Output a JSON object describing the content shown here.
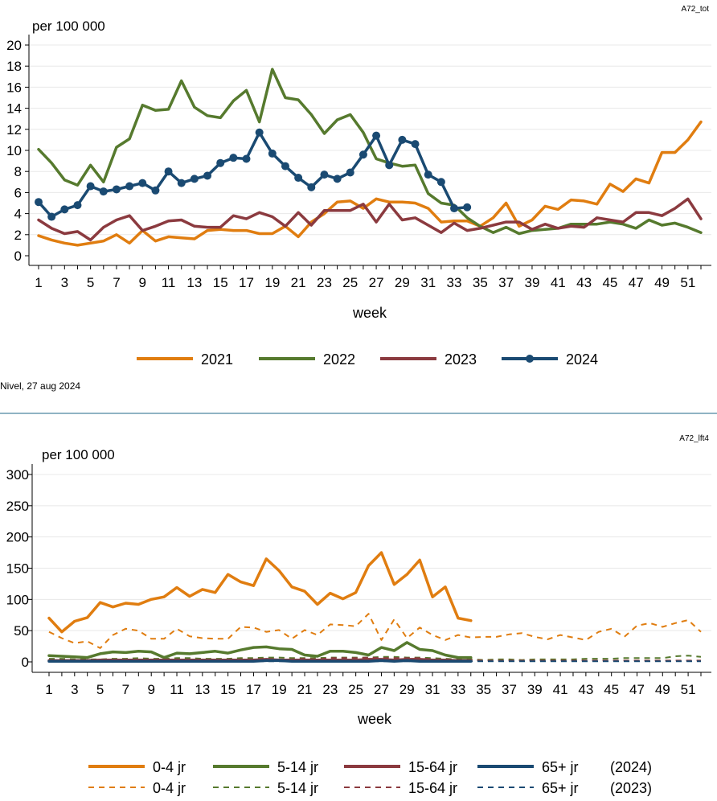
{
  "colors": {
    "orange": "#e07d10",
    "green": "#567a2e",
    "red": "#8b3a3f",
    "blue": "#1a4a72",
    "divider": "#6a9ab0",
    "grid": "#e8e8e8"
  },
  "chart_data": [
    {
      "type": "line",
      "code": "A72_tot",
      "ylabel": "per 100 000",
      "xlabel": "week",
      "ylim": [
        0,
        20
      ],
      "yticks": [
        0,
        2,
        4,
        6,
        8,
        10,
        12,
        14,
        16,
        18,
        20
      ],
      "xticks": [
        1,
        3,
        5,
        7,
        9,
        11,
        13,
        15,
        17,
        19,
        21,
        23,
        25,
        27,
        29,
        31,
        33,
        35,
        37,
        39,
        41,
        43,
        45,
        47,
        49,
        51
      ],
      "grid": true,
      "legend_position": "bottom",
      "series": [
        {
          "name": "2021",
          "color": "orange",
          "markers": false,
          "values": [
            1.9,
            1.5,
            1.2,
            1.0,
            1.2,
            1.4,
            2.0,
            1.2,
            2.4,
            1.4,
            1.8,
            1.7,
            1.6,
            2.4,
            2.5,
            2.4,
            2.4,
            2.1,
            2.1,
            2.8,
            1.8,
            3.2,
            4.0,
            5.1,
            5.2,
            4.5,
            5.4,
            5.1,
            5.1,
            5.0,
            4.5,
            3.2,
            3.3,
            3.3,
            2.8,
            3.6,
            5.0,
            2.8,
            3.4,
            4.7,
            4.4,
            5.3,
            5.2,
            4.9,
            6.8,
            6.1,
            7.3,
            6.9,
            9.8,
            9.8,
            11.0,
            12.7
          ]
        },
        {
          "name": "2022",
          "color": "green",
          "markers": false,
          "values": [
            10.1,
            8.8,
            7.2,
            6.7,
            8.6,
            7.0,
            10.3,
            11.1,
            14.3,
            13.8,
            13.9,
            16.6,
            14.1,
            13.3,
            13.1,
            14.7,
            15.7,
            12.7,
            17.7,
            15.0,
            14.8,
            13.4,
            11.6,
            12.9,
            13.4,
            11.7,
            9.2,
            8.8,
            8.5,
            8.6,
            5.9,
            5.0,
            4.8,
            3.6,
            2.8,
            2.2,
            2.7,
            2.1,
            2.4,
            2.5,
            2.6,
            3.0,
            3.0,
            3.0,
            3.2,
            3.0,
            2.6,
            3.4,
            2.9,
            3.1,
            2.7,
            2.2
          ]
        },
        {
          "name": "2023",
          "color": "red",
          "markers": false,
          "values": [
            3.4,
            2.6,
            2.1,
            2.3,
            1.5,
            2.7,
            3.4,
            3.8,
            2.4,
            2.8,
            3.3,
            3.4,
            2.8,
            2.7,
            2.7,
            3.8,
            3.5,
            4.1,
            3.7,
            2.8,
            4.1,
            2.9,
            4.3,
            4.3,
            4.3,
            4.9,
            3.2,
            4.9,
            3.4,
            3.6,
            2.9,
            2.2,
            3.1,
            2.4,
            2.6,
            2.9,
            3.2,
            3.2,
            2.5,
            3.0,
            2.6,
            2.8,
            2.7,
            3.6,
            3.4,
            3.2,
            4.1,
            4.1,
            3.8,
            4.5,
            5.4,
            3.5
          ]
        },
        {
          "name": "2024",
          "color": "blue",
          "markers": true,
          "values": [
            5.1,
            3.7,
            4.4,
            4.8,
            6.6,
            6.1,
            6.3,
            6.6,
            6.9,
            6.2,
            8.0,
            6.9,
            7.3,
            7.6,
            8.8,
            9.3,
            9.2,
            11.7,
            9.7,
            8.5,
            7.4,
            6.5,
            7.7,
            7.3,
            7.9,
            9.6,
            11.4,
            8.6,
            11.0,
            10.6,
            7.7,
            7.0,
            4.5,
            4.6
          ]
        }
      ]
    },
    {
      "type": "line",
      "code": "A72_lft4",
      "ylabel": "per 100 000",
      "xlabel": "week",
      "ylim": [
        0,
        300
      ],
      "yticks": [
        0,
        50,
        100,
        150,
        200,
        250,
        300
      ],
      "xticks": [
        1,
        3,
        5,
        7,
        9,
        11,
        13,
        15,
        17,
        19,
        21,
        23,
        25,
        27,
        29,
        31,
        33,
        35,
        37,
        39,
        41,
        43,
        45,
        47,
        49,
        51
      ],
      "grid": true,
      "legend_position": "bottom",
      "series": [
        {
          "name": "0-4 jr",
          "year": "(2024)",
          "color": "orange",
          "dashed": false,
          "values": [
            70,
            48,
            65,
            71,
            95,
            88,
            94,
            92,
            100,
            104,
            119,
            105,
            116,
            111,
            140,
            128,
            122,
            165,
            146,
            120,
            113,
            92,
            110,
            101,
            111,
            154,
            175,
            124,
            140,
            163,
            104,
            120,
            70,
            66
          ]
        },
        {
          "name": "5-14 jr",
          "year": "(2024)",
          "color": "green",
          "dashed": false,
          "values": [
            10,
            9,
            8,
            7,
            13,
            16,
            15,
            17,
            16,
            7,
            14,
            13,
            15,
            17,
            14,
            19,
            23,
            24,
            21,
            20,
            11,
            9,
            17,
            17,
            15,
            11,
            23,
            18,
            31,
            20,
            18,
            11,
            7,
            7
          ]
        },
        {
          "name": "15-64 jr",
          "year": "(2024)",
          "color": "red",
          "dashed": false,
          "values": [
            2,
            2,
            2,
            2,
            3,
            3,
            3,
            3,
            3,
            3,
            3,
            3,
            3,
            3,
            3,
            3,
            3,
            4,
            3,
            3,
            3,
            3,
            3,
            3,
            3,
            4,
            4,
            3,
            4,
            4,
            3,
            3,
            2,
            2
          ]
        },
        {
          "name": "65+ jr",
          "year": "(2024)",
          "color": "blue",
          "dashed": false,
          "values": [
            1,
            1,
            1,
            1,
            1,
            1,
            1,
            1,
            1,
            1,
            1,
            1,
            1,
            1,
            1,
            1,
            1,
            2,
            2,
            1,
            1,
            1,
            1,
            1,
            1,
            1,
            2,
            1,
            2,
            1,
            1,
            1,
            1,
            1
          ]
        },
        {
          "name": "0-4 jr",
          "year": "(2023)",
          "color": "orange",
          "dashed": true,
          "values": [
            48,
            38,
            30,
            33,
            22,
            43,
            53,
            50,
            37,
            37,
            53,
            41,
            38,
            37,
            37,
            56,
            55,
            48,
            51,
            37,
            51,
            43,
            60,
            59,
            57,
            77,
            35,
            68,
            38,
            55,
            43,
            35,
            43,
            39,
            40,
            40,
            44,
            46,
            40,
            36,
            43,
            39,
            35,
            48,
            53,
            40,
            58,
            62,
            56,
            62,
            67,
            48
          ]
        },
        {
          "name": "5-14 jr",
          "year": "(2023)",
          "color": "green",
          "dashed": true,
          "values": [
            5,
            5,
            4,
            4,
            4,
            5,
            5,
            6,
            5,
            5,
            6,
            6,
            5,
            5,
            5,
            6,
            6,
            7,
            7,
            6,
            6,
            6,
            7,
            7,
            7,
            7,
            8,
            8,
            7,
            7,
            6,
            5,
            4,
            4,
            3,
            4,
            4,
            3,
            4,
            4,
            4,
            4,
            5,
            5,
            5,
            6,
            6,
            6,
            6,
            9,
            10,
            8
          ]
        },
        {
          "name": "15-64 jr",
          "year": "(2023)",
          "color": "red",
          "dashed": true,
          "values": [
            3,
            3,
            2,
            2,
            2,
            2,
            3,
            3,
            2,
            2,
            3,
            3,
            3,
            3,
            3,
            4,
            4,
            5,
            4,
            4,
            5,
            4,
            6,
            6,
            6,
            7,
            6,
            6,
            6,
            6,
            4,
            4,
            3,
            3,
            2,
            2,
            2,
            2,
            2,
            2,
            2,
            2,
            2,
            2,
            2,
            2,
            2,
            2,
            2,
            2,
            2,
            2
          ]
        },
        {
          "name": "65+ jr",
          "year": "(2023)",
          "color": "blue",
          "dashed": true,
          "values": [
            1,
            1,
            1,
            1,
            1,
            1,
            1,
            1,
            1,
            1,
            1,
            1,
            1,
            1,
            1,
            1,
            1,
            1,
            1,
            1,
            1,
            1,
            1,
            1,
            1,
            1,
            1,
            1,
            1,
            1,
            1,
            1,
            1,
            1,
            1,
            1,
            1,
            1,
            1,
            1,
            1,
            1,
            1,
            1,
            1,
            1,
            1,
            1,
            1,
            1,
            1,
            1
          ]
        }
      ]
    }
  ],
  "footer": {
    "note": "Nivel, 27 aug 2024"
  }
}
